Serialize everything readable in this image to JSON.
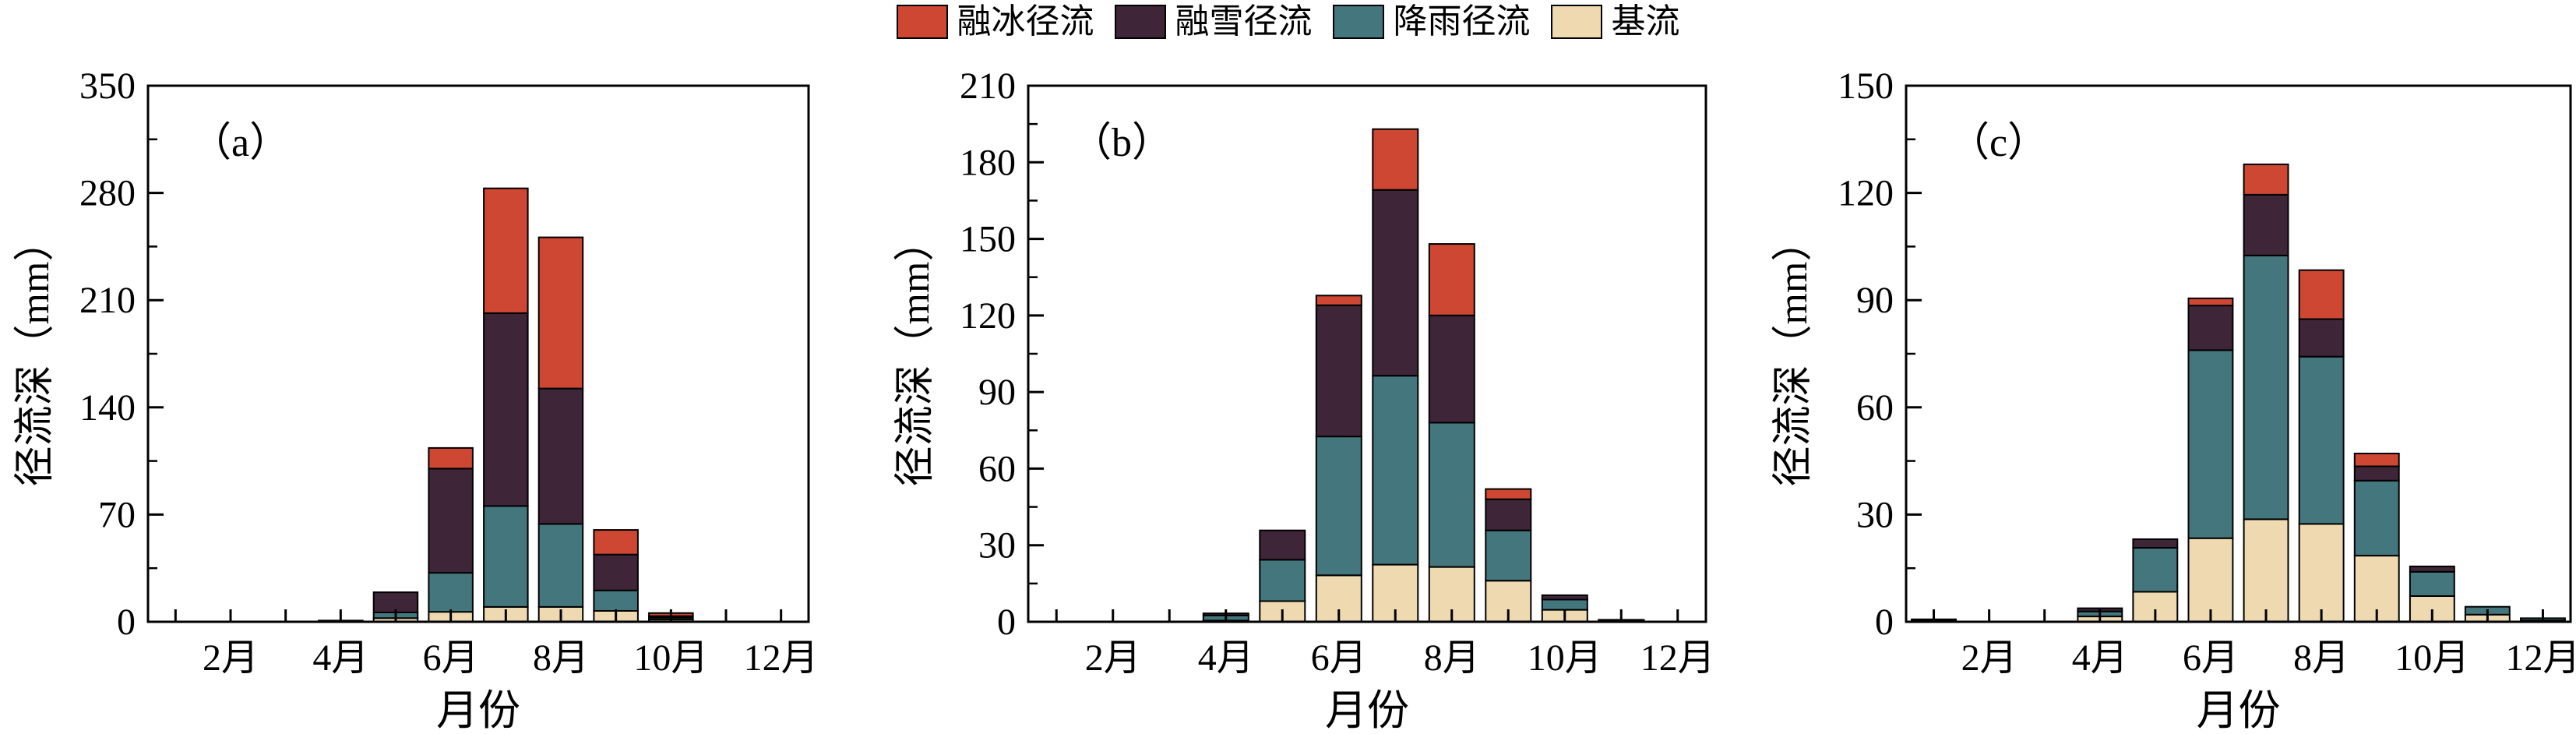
{
  "legend": {
    "items": [
      {
        "label": "融冰径流",
        "color": "#CD4733"
      },
      {
        "label": "融雪径流",
        "color": "#3E2537"
      },
      {
        "label": "降雨径流",
        "color": "#44767E"
      },
      {
        "label": "基流",
        "color": "#EFD9B0"
      }
    ]
  },
  "chart_data": [
    {
      "type": "bar",
      "stacked": true,
      "panel_label": "（a）",
      "ylabel": "径流深（mm）",
      "xlabel": "月份",
      "ylim": [
        0,
        350
      ],
      "yticks": [
        0,
        70,
        140,
        210,
        280,
        350
      ],
      "x_months": [
        1,
        2,
        3,
        4,
        5,
        6,
        7,
        8,
        9,
        10,
        11,
        12
      ],
      "xtick_labeled_months": [
        2,
        4,
        6,
        8,
        10,
        12
      ],
      "xtick_labels": [
        "2月",
        "4月",
        "6月",
        "8月",
        "10月",
        "12月"
      ],
      "grid": false,
      "legend_position": "top-outside",
      "series": [
        {
          "name": "基流",
          "color": "#EFD9B0",
          "values": [
            0,
            0,
            0,
            0.3,
            2.4,
            6.5,
            9.7,
            9.7,
            7.1,
            1.5,
            0,
            0
          ]
        },
        {
          "name": "降雨径流",
          "color": "#44767E",
          "values": [
            0,
            0,
            0,
            0.2,
            3.7,
            25.5,
            65.9,
            54.2,
            13.4,
            1.2,
            0,
            0
          ]
        },
        {
          "name": "融雪径流",
          "color": "#3E2537",
          "values": [
            0,
            0,
            0,
            0.3,
            13.2,
            68.0,
            125.9,
            88.4,
            23.4,
            1.0,
            0,
            0
          ]
        },
        {
          "name": "融冰径流",
          "color": "#CD4733",
          "values": [
            0,
            0,
            0,
            0,
            0,
            13.5,
            81.5,
            98.7,
            16.1,
            2.0,
            0,
            0
          ]
        }
      ]
    },
    {
      "type": "bar",
      "stacked": true,
      "panel_label": "（b）",
      "ylabel": "径流深（mm）",
      "xlabel": "月份",
      "ylim": [
        0,
        210
      ],
      "yticks": [
        0,
        30,
        60,
        90,
        120,
        150,
        180,
        210
      ],
      "x_months": [
        1,
        2,
        3,
        4,
        5,
        6,
        7,
        8,
        9,
        10,
        11,
        12
      ],
      "xtick_labeled_months": [
        2,
        4,
        6,
        8,
        10,
        12
      ],
      "xtick_labels": [
        "2月",
        "4月",
        "6月",
        "8月",
        "10月",
        "12月"
      ],
      "grid": false,
      "legend_position": "top-outside",
      "series": [
        {
          "name": "基流",
          "color": "#EFD9B0",
          "values": [
            0,
            0,
            0,
            0.5,
            8.1,
            18.2,
            22.4,
            21.5,
            16.1,
            4.7,
            0.4,
            0
          ]
        },
        {
          "name": "降雨径流",
          "color": "#44767E",
          "values": [
            0,
            0,
            0,
            2.0,
            16.2,
            54.4,
            74.0,
            56.5,
            19.7,
            4.0,
            0.2,
            0
          ]
        },
        {
          "name": "融雪径流",
          "color": "#3E2537",
          "values": [
            0,
            0,
            0,
            0.8,
            11.5,
            51.4,
            72.8,
            42.0,
            12.2,
            1.7,
            0.2,
            0
          ]
        },
        {
          "name": "融冰径流",
          "color": "#CD4733",
          "values": [
            0,
            0,
            0,
            0,
            0,
            3.8,
            23.8,
            28.0,
            4.0,
            0,
            0,
            0
          ]
        }
      ]
    },
    {
      "type": "bar",
      "stacked": true,
      "panel_label": "（c）",
      "ylabel": "径流深（mm）",
      "xlabel": "月份",
      "ylim": [
        0,
        150
      ],
      "yticks": [
        0,
        30,
        60,
        90,
        120,
        150
      ],
      "x_months": [
        1,
        2,
        3,
        4,
        5,
        6,
        7,
        8,
        9,
        10,
        11,
        12
      ],
      "xtick_labeled_months": [
        2,
        4,
        6,
        8,
        10,
        12
      ],
      "xtick_labels": [
        "2月",
        "4月",
        "6月",
        "8月",
        "10月",
        "12月"
      ],
      "grid": false,
      "legend_position": "top-outside",
      "series": [
        {
          "name": "基流",
          "color": "#EFD9B0",
          "values": [
            0.3,
            0,
            0,
            1.5,
            8.4,
            23.4,
            28.7,
            27.4,
            18.5,
            7.2,
            2.0,
            0.4
          ]
        },
        {
          "name": "降雨径流",
          "color": "#44767E",
          "values": [
            0.2,
            0,
            0,
            1.4,
            12.3,
            52.6,
            73.8,
            46.8,
            21.0,
            6.8,
            2.2,
            0.6
          ]
        },
        {
          "name": "融雪径流",
          "color": "#3E2537",
          "values": [
            0.2,
            0,
            0,
            0.9,
            2.4,
            12.5,
            17.0,
            10.5,
            4.0,
            1.5,
            0,
            0
          ]
        },
        {
          "name": "融冰径流",
          "color": "#CD4733",
          "values": [
            0,
            0,
            0,
            0,
            0,
            2.0,
            8.5,
            13.7,
            3.6,
            0,
            0,
            0
          ]
        }
      ]
    }
  ]
}
